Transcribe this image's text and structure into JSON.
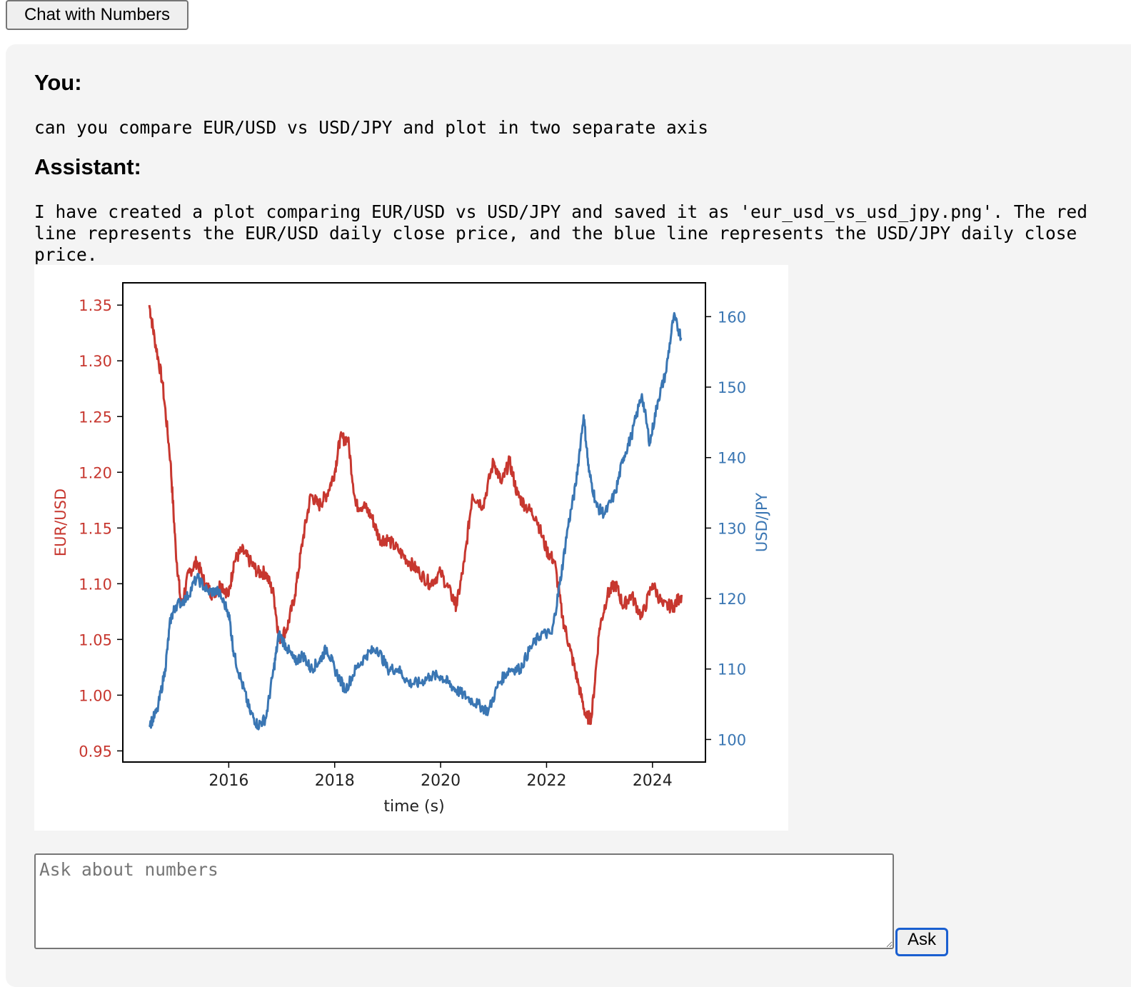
{
  "header": {
    "button_label": "Chat with Numbers"
  },
  "conversation": {
    "user_role": "You:",
    "user_message": "can you compare EUR/USD vs USD/JPY and plot in two separate axis",
    "assistant_role": "Assistant:",
    "assistant_message": "I have created a plot comparing EUR/USD vs USD/JPY and saved it as 'eur_usd_vs_usd_jpy.png'. The red line represents the EUR/USD daily close price, and the blue line represents the USD/JPY daily close price."
  },
  "input": {
    "placeholder": "Ask about numbers",
    "value": ""
  },
  "ask_button": {
    "label": "Ask"
  },
  "colors": {
    "eur_usd": "#c7372f",
    "usd_jpy": "#3a76b3",
    "panel_bg": "#f4f4f4",
    "ask_border": "#1a5fd0"
  },
  "chart_data": {
    "type": "line",
    "xlabel": "time (s)",
    "x_ticks": [
      2016,
      2018,
      2020,
      2022,
      2024
    ],
    "xlim": [
      2014.0,
      2025.0
    ],
    "y_left": {
      "label": "EUR/USD",
      "ticks": [
        "0.95",
        "1.00",
        "1.05",
        "1.10",
        "1.15",
        "1.20",
        "1.25",
        "1.30",
        "1.35"
      ],
      "ylim": [
        0.94,
        1.37
      ]
    },
    "y_right": {
      "label": "USD/JPY",
      "ticks": [
        "100",
        "110",
        "120",
        "130",
        "140",
        "150",
        "160"
      ],
      "ylim": [
        96.8,
        164.8
      ]
    },
    "grid": false,
    "legend": "none",
    "series": [
      {
        "axis": "left",
        "x": [
          2014.5,
          2014.6,
          2014.75,
          2014.9,
          2015.0,
          2015.1,
          2015.25,
          2015.4,
          2015.55,
          2015.7,
          2015.85,
          2016.0,
          2016.1,
          2016.25,
          2016.4,
          2016.55,
          2016.7,
          2016.85,
          2016.95,
          2017.1,
          2017.25,
          2017.4,
          2017.55,
          2017.7,
          2017.85,
          2018.0,
          2018.1,
          2018.25,
          2018.4,
          2018.55,
          2018.7,
          2018.85,
          2019.0,
          2019.2,
          2019.4,
          2019.6,
          2019.8,
          2020.0,
          2020.2,
          2020.3,
          2020.45,
          2020.6,
          2020.8,
          2021.0,
          2021.15,
          2021.3,
          2021.45,
          2021.6,
          2021.8,
          2022.0,
          2022.15,
          2022.3,
          2022.45,
          2022.6,
          2022.75,
          2022.85,
          2023.0,
          2023.15,
          2023.3,
          2023.45,
          2023.6,
          2023.8,
          2024.0,
          2024.2,
          2024.4,
          2024.55
        ],
        "values": [
          1.35,
          1.32,
          1.28,
          1.21,
          1.13,
          1.08,
          1.11,
          1.12,
          1.1,
          1.09,
          1.1,
          1.09,
          1.12,
          1.13,
          1.12,
          1.11,
          1.11,
          1.09,
          1.05,
          1.06,
          1.09,
          1.14,
          1.18,
          1.17,
          1.18,
          1.2,
          1.23,
          1.23,
          1.17,
          1.17,
          1.16,
          1.14,
          1.14,
          1.13,
          1.12,
          1.11,
          1.1,
          1.11,
          1.09,
          1.08,
          1.12,
          1.18,
          1.17,
          1.21,
          1.19,
          1.21,
          1.18,
          1.17,
          1.16,
          1.13,
          1.12,
          1.07,
          1.04,
          1.01,
          0.98,
          0.98,
          1.06,
          1.09,
          1.1,
          1.08,
          1.09,
          1.07,
          1.1,
          1.08,
          1.08,
          1.09
        ]
      },
      {
        "axis": "right",
        "x": [
          2014.5,
          2014.65,
          2014.8,
          2014.9,
          2015.0,
          2015.2,
          2015.4,
          2015.6,
          2015.8,
          2016.0,
          2016.1,
          2016.25,
          2016.4,
          2016.55,
          2016.7,
          2016.85,
          2016.95,
          2017.1,
          2017.25,
          2017.4,
          2017.55,
          2017.7,
          2017.85,
          2018.0,
          2018.2,
          2018.4,
          2018.6,
          2018.8,
          2019.0,
          2019.2,
          2019.4,
          2019.6,
          2019.8,
          2020.0,
          2020.15,
          2020.3,
          2020.5,
          2020.7,
          2020.9,
          2021.1,
          2021.3,
          2021.5,
          2021.7,
          2021.9,
          2022.1,
          2022.25,
          2022.4,
          2022.55,
          2022.7,
          2022.8,
          2022.95,
          2023.1,
          2023.3,
          2023.45,
          2023.6,
          2023.8,
          2023.95,
          2024.1,
          2024.25,
          2024.4,
          2024.55
        ],
        "values": [
          102,
          104,
          110,
          117,
          119,
          120,
          123,
          121,
          121,
          118,
          112,
          108,
          104,
          102,
          103,
          110,
          115,
          113,
          111,
          112,
          110,
          111,
          113,
          110,
          107,
          110,
          112,
          113,
          110,
          110,
          108,
          108,
          109,
          109,
          108,
          107,
          106,
          105,
          104,
          108,
          110,
          110,
          113,
          115,
          115,
          122,
          130,
          136,
          146,
          138,
          133,
          132,
          135,
          140,
          143,
          149,
          142,
          148,
          152,
          160,
          157
        ]
      }
    ]
  }
}
